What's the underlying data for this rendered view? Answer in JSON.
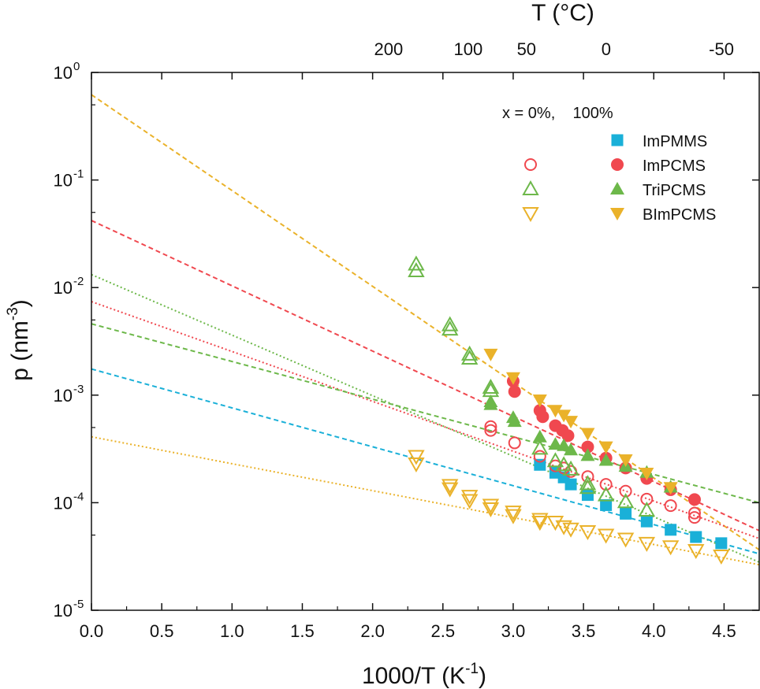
{
  "chart_data": {
    "type": "scatter",
    "xlabel": "1000/T (K",
    "xlabel_sup": "-1",
    "xlabel_close": ")",
    "ylabel": "p (nm",
    "ylabel_sup": "-3",
    "ylabel_close": ")",
    "top_axis_label": "T (°C)",
    "xlim": [
      0,
      4.75
    ],
    "ylim": [
      1e-05,
      1
    ],
    "y_scale": "log",
    "x_ticks": [
      "0.0",
      "0.5",
      "1.0",
      "1.5",
      "2.0",
      "2.5",
      "3.0",
      "3.5",
      "4.0",
      "4.5"
    ],
    "x_tick_values": [
      0,
      0.5,
      1,
      1.5,
      2,
      2.5,
      3,
      3.5,
      4,
      4.5
    ],
    "y_ticks": [
      {
        "base": "10",
        "exp": "0",
        "value": 1
      },
      {
        "base": "10",
        "exp": "-1",
        "value": 0.1
      },
      {
        "base": "10",
        "exp": "-2",
        "value": 0.01
      },
      {
        "base": "10",
        "exp": "-3",
        "value": 0.001
      },
      {
        "base": "10",
        "exp": "-4",
        "value": 0.0001
      },
      {
        "base": "10",
        "exp": "-5",
        "value": 1e-05
      }
    ],
    "top_ticks": [
      {
        "label": "200",
        "celsius": 200
      },
      {
        "label": "100",
        "celsius": 100
      },
      {
        "label": "50",
        "celsius": 50
      },
      {
        "label": "0",
        "celsius": 0
      },
      {
        "label": "-50",
        "celsius": -50
      }
    ],
    "legend": {
      "header": "x = 0%,    100%",
      "position": "top-right",
      "entries": [
        {
          "label": "ImPMMS",
          "open": false,
          "filled": true,
          "marker": "square",
          "color": "#1ab0d8"
        },
        {
          "label": "ImPCMS",
          "open": true,
          "filled": true,
          "marker": "circle",
          "color": "#f0484f"
        },
        {
          "label": "TriPCMS",
          "open": true,
          "filled": true,
          "marker": "triangle-up",
          "color": "#6db84a"
        },
        {
          "label": "BImPCMS",
          "open": true,
          "filled": true,
          "marker": "triangle-down",
          "color": "#eab22a"
        }
      ]
    },
    "series": [
      {
        "name": "ImPMMS",
        "fill": "filled",
        "marker": "square",
        "color": "#1ab0d8",
        "points": [
          [
            3.19,
            0.000225
          ],
          [
            3.3,
            0.00019
          ],
          [
            3.36,
            0.000172
          ],
          [
            3.41,
            0.000148
          ],
          [
            3.53,
            0.000118
          ],
          [
            3.66,
            9.5e-05
          ],
          [
            3.8,
            7.9e-05
          ],
          [
            3.95,
            6.7e-05
          ],
          [
            4.12,
            5.6e-05
          ],
          [
            4.3,
            4.8e-05
          ],
          [
            4.48,
            4.2e-05
          ]
        ]
      },
      {
        "name": "ImPCMS",
        "fill": "filled",
        "marker": "circle",
        "color": "#f0484f",
        "points": [
          [
            3.0,
            0.00135
          ],
          [
            3.01,
            0.00108
          ],
          [
            3.19,
            0.00072
          ],
          [
            3.21,
            0.00063
          ],
          [
            3.3,
            0.00052
          ],
          [
            3.35,
            0.00047
          ],
          [
            3.39,
            0.00042
          ],
          [
            3.53,
            0.00033
          ],
          [
            3.66,
            0.00026
          ],
          [
            3.8,
            0.00021
          ],
          [
            3.95,
            0.000168
          ],
          [
            4.12,
            0.000132
          ],
          [
            4.29,
            0.000107
          ]
        ]
      },
      {
        "name": "ImPCMS",
        "fill": "open",
        "marker": "circle",
        "color": "#f0484f",
        "points": [
          [
            2.84,
            0.00051
          ],
          [
            2.84,
            0.00047
          ],
          [
            3.01,
            0.00036
          ],
          [
            3.19,
            0.00027
          ],
          [
            3.3,
            0.00022
          ],
          [
            3.36,
            0.00021
          ],
          [
            3.41,
            0.000195
          ],
          [
            3.53,
            0.000175
          ],
          [
            3.66,
            0.000148
          ],
          [
            3.8,
            0.000128
          ],
          [
            3.95,
            0.000108
          ],
          [
            4.12,
            9.4e-05
          ],
          [
            4.29,
            8e-05
          ],
          [
            4.29,
            7.3e-05
          ]
        ]
      },
      {
        "name": "TriPCMS",
        "fill": "filled",
        "marker": "triangle-up",
        "color": "#6db84a",
        "points": [
          [
            2.84,
            0.00087
          ],
          [
            2.84,
            0.00082
          ],
          [
            3.0,
            0.00062
          ],
          [
            3.01,
            0.00057
          ],
          [
            3.19,
            0.00041
          ],
          [
            3.3,
            0.00035
          ],
          [
            3.36,
            0.00034
          ],
          [
            3.41,
            0.00031
          ],
          [
            3.53,
            0.000275
          ],
          [
            3.66,
            0.000248
          ],
          [
            3.8,
            0.000218
          ],
          [
            3.95,
            0.000192
          ],
          [
            4.12,
            0.00014
          ]
        ]
      },
      {
        "name": "TriPCMS",
        "fill": "open",
        "marker": "triangle-up",
        "color": "#6db84a",
        "points": [
          [
            2.31,
            0.0165
          ],
          [
            2.31,
            0.0143
          ],
          [
            2.55,
            0.0045
          ],
          [
            2.55,
            0.0041
          ],
          [
            2.69,
            0.0024
          ],
          [
            2.69,
            0.0022
          ],
          [
            2.84,
            0.00118
          ],
          [
            2.84,
            0.0011
          ],
          [
            3.19,
            0.00032
          ],
          [
            3.3,
            0.000245
          ],
          [
            3.36,
            0.000225
          ],
          [
            3.41,
            0.000205
          ],
          [
            3.53,
            0.00015
          ],
          [
            3.53,
            0.000138
          ],
          [
            3.66,
            0.000118
          ],
          [
            3.8,
            0.000102
          ],
          [
            3.95,
            8.5e-05
          ]
        ]
      },
      {
        "name": "BImPCMS",
        "fill": "filled",
        "marker": "triangle-down",
        "color": "#eab22a",
        "points": [
          [
            2.84,
            0.0024
          ],
          [
            3.0,
            0.00145
          ],
          [
            3.19,
            0.0009
          ],
          [
            3.3,
            0.00072
          ],
          [
            3.36,
            0.00065
          ],
          [
            3.41,
            0.00057
          ],
          [
            3.53,
            0.00044
          ],
          [
            3.66,
            0.00033
          ],
          [
            3.8,
            0.00025
          ],
          [
            3.95,
            0.000188
          ],
          [
            4.12,
            0.000138
          ]
        ]
      },
      {
        "name": "BImPCMS",
        "fill": "open",
        "marker": "triangle-down",
        "color": "#eab22a",
        "points": [
          [
            2.31,
            0.00027
          ],
          [
            2.31,
            0.00023
          ],
          [
            2.55,
            0.000145
          ],
          [
            2.55,
            0.000135
          ],
          [
            2.69,
            0.000115
          ],
          [
            2.69,
            0.000105
          ],
          [
            2.84,
            9.5e-05
          ],
          [
            2.84,
            8.8e-05
          ],
          [
            3.0,
            8.2e-05
          ],
          [
            3.0,
            7.6e-05
          ],
          [
            3.19,
            7e-05
          ],
          [
            3.19,
            6.6e-05
          ],
          [
            3.3,
            6.6e-05
          ],
          [
            3.36,
            6e-05
          ],
          [
            3.41,
            5.7e-05
          ],
          [
            3.53,
            5.4e-05
          ],
          [
            3.66,
            5e-05
          ],
          [
            3.8,
            4.6e-05
          ],
          [
            3.95,
            4.2e-05
          ],
          [
            4.12,
            3.9e-05
          ],
          [
            4.3,
            3.6e-05
          ],
          [
            4.48,
            3.2e-05
          ]
        ]
      }
    ],
    "fits": [
      {
        "color": "#eab22a",
        "style": "dash",
        "y0": 0.62,
        "y_end": 3.65e-05
      },
      {
        "color": "#f0484f",
        "style": "dash",
        "y0": 0.042,
        "y_end": 5.5e-05
      },
      {
        "color": "#6db84a",
        "style": "dot",
        "y0": 0.0132,
        "y_end": 2.8e-05
      },
      {
        "color": "#f0484f",
        "style": "dot",
        "y0": 0.0074,
        "y_end": 4.65e-05
      },
      {
        "color": "#6db84a",
        "style": "dash",
        "y0": 0.0046,
        "y_end": 0.0001
      },
      {
        "color": "#1ab0d8",
        "style": "dash",
        "y0": 0.00175,
        "y_end": 3.35e-05
      },
      {
        "color": "#eab22a",
        "style": "dot",
        "y0": 0.00041,
        "y_end": 2.65e-05
      }
    ]
  }
}
